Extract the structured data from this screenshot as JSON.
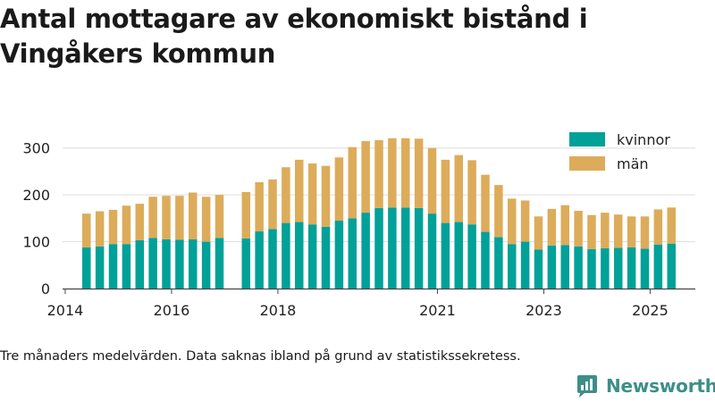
{
  "title": "Antal mottagare av ekonomiskt bistånd i Vingåkers kommun",
  "note": "Tre månaders medelvärden. Data saknas ibland på grund av statistikssekretess.",
  "brand": "Newsworthy",
  "colors": {
    "women": "#00a198",
    "men": "#dcac5a",
    "brand": "#3d8f88"
  },
  "chart_data": {
    "type": "bar",
    "stacked": true,
    "title": "Antal mottagare av ekonomiskt bistånd i Vingåkers kommun",
    "xlabel": "",
    "ylabel": "",
    "x_range": [
      2013.95,
      2025.85
    ],
    "ylim": [
      0,
      330
    ],
    "y_ticks": [
      0,
      100,
      200,
      300
    ],
    "x_ticks": [
      2014,
      2016,
      2018,
      2021,
      2023,
      2025
    ],
    "grid": true,
    "legend_position": "top-right",
    "x": [
      2014.4,
      2014.65,
      2014.9,
      2015.15,
      2015.4,
      2015.65,
      2015.9,
      2016.15,
      2016.4,
      2016.65,
      2016.9,
      2017.4,
      2017.65,
      2017.9,
      2018.15,
      2018.4,
      2018.65,
      2018.9,
      2019.15,
      2019.4,
      2019.65,
      2019.9,
      2020.15,
      2020.4,
      2020.65,
      2020.9,
      2021.15,
      2021.4,
      2021.65,
      2021.9,
      2022.15,
      2022.4,
      2022.65,
      2022.9,
      2023.15,
      2023.4,
      2023.65,
      2023.9,
      2024.15,
      2024.4,
      2024.65,
      2024.9,
      2025.15,
      2025.4
    ],
    "series": [
      {
        "name": "kvinnor",
        "values": [
          88,
          90,
          95,
          95,
          103,
          108,
          105,
          104,
          105,
          100,
          108,
          107,
          122,
          127,
          140,
          142,
          137,
          132,
          145,
          150,
          162,
          172,
          173,
          173,
          172,
          160,
          140,
          142,
          137,
          121,
          110,
          95,
          100,
          83,
          92,
          93,
          90,
          84,
          86,
          87,
          88,
          85,
          94,
          96
        ]
      },
      {
        "name": "män",
        "values": [
          72,
          75,
          73,
          82,
          78,
          88,
          93,
          94,
          100,
          96,
          92,
          99,
          105,
          106,
          119,
          133,
          130,
          130,
          135,
          152,
          153,
          145,
          148,
          148,
          148,
          140,
          135,
          143,
          137,
          122,
          111,
          97,
          88,
          71,
          78,
          85,
          76,
          73,
          76,
          71,
          66,
          69,
          75,
          77
        ]
      }
    ]
  }
}
